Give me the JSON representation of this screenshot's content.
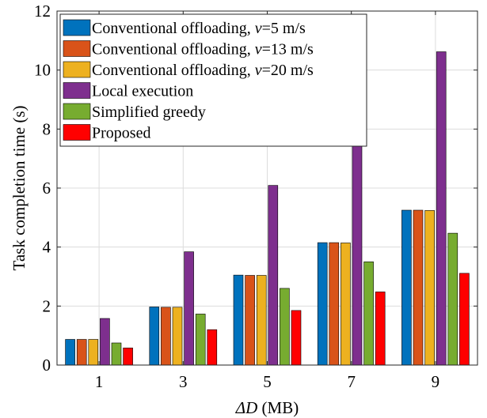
{
  "chart_data": {
    "type": "bar",
    "xlabel_italic": "ΔD",
    "xlabel_unit": " (MB)",
    "ylabel": "Task completion time (s)",
    "categories": [
      "1",
      "3",
      "5",
      "7",
      "9"
    ],
    "ylim": [
      0,
      12
    ],
    "yticks": [
      "0",
      "2",
      "4",
      "6",
      "8",
      "10",
      "12"
    ],
    "grid": true,
    "legend_position": "top-left",
    "series": [
      {
        "name_prefix": "Conventional offloading, ",
        "name_var": "v",
        "name_suffix": "=5 m/s",
        "color": "#0072BD",
        "values": [
          0.87,
          1.97,
          3.05,
          4.15,
          5.25
        ]
      },
      {
        "name_prefix": "Conventional offloading, ",
        "name_var": "v",
        "name_suffix": "=13 m/s",
        "color": "#D95319",
        "values": [
          0.87,
          1.96,
          3.04,
          4.15,
          5.25
        ]
      },
      {
        "name_prefix": "Conventional offloading, ",
        "name_var": "v",
        "name_suffix": "=20 m/s",
        "color": "#EDB120",
        "values": [
          0.87,
          1.96,
          3.04,
          4.14,
          5.24
        ]
      },
      {
        "name_prefix": "Local execution",
        "name_var": "",
        "name_suffix": "",
        "color": "#7E2F8E",
        "values": [
          1.58,
          3.84,
          6.09,
          8.35,
          10.62
        ]
      },
      {
        "name_prefix": "Simplified greedy",
        "name_var": "",
        "name_suffix": "",
        "color": "#77AC30",
        "values": [
          0.75,
          1.73,
          2.6,
          3.5,
          4.47
        ]
      },
      {
        "name_prefix": "Proposed",
        "name_var": "",
        "name_suffix": "",
        "color": "#FF0000",
        "values": [
          0.58,
          1.2,
          1.85,
          2.48,
          3.11
        ]
      }
    ]
  }
}
